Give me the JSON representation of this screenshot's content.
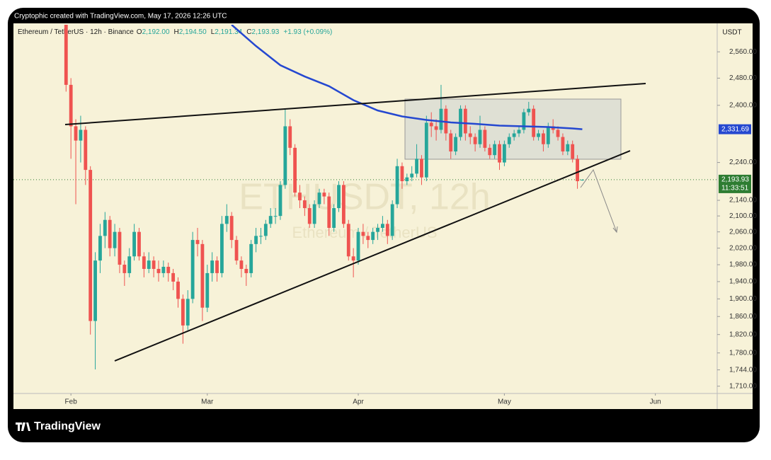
{
  "header": {
    "credit": "Cryptophic created with TradingView.com, May 17, 2026 12:26 UTC"
  },
  "legend": {
    "symbol": "Ethereum / TetherUS · 12h · Binance",
    "ohlc": [
      {
        "key": "O",
        "value": "2,192.00"
      },
      {
        "key": "H",
        "value": "2,194.50"
      },
      {
        "key": "L",
        "value": "2,191.34"
      },
      {
        "key": "C",
        "value": "2,193.93"
      }
    ],
    "change": "+1.93 (+0.09%)"
  },
  "watermark": {
    "ticker": "ETHUSDT, 12h",
    "name": "Ethereum / TetherUS"
  },
  "footer": {
    "brand": "TradingView"
  },
  "chart_data": {
    "type": "candlestick",
    "log_scale": true,
    "grid": false,
    "unit": "USDT",
    "up_color": "#26a69a",
    "down_color": "#ef5350",
    "xlim": [
      -11.8,
      132.7
    ],
    "ylim": [
      1695,
      2645
    ],
    "xticks": [
      {
        "value": 0,
        "label": "Feb"
      },
      {
        "value": 28,
        "label": "Mar"
      },
      {
        "value": 59,
        "label": "Apr"
      },
      {
        "value": 89,
        "label": "May"
      },
      {
        "value": 120,
        "label": "Jun"
      }
    ],
    "yticks": [
      {
        "value": 2560,
        "label": "2,560.00"
      },
      {
        "value": 2480,
        "label": "2,480.00"
      },
      {
        "value": 2400,
        "label": "2,400.00"
      },
      {
        "value": 2240,
        "label": "2,240.00"
      },
      {
        "value": 2140,
        "label": "2,140.00"
      },
      {
        "value": 2100,
        "label": "2,100.00"
      },
      {
        "value": 2060,
        "label": "2,060.00"
      },
      {
        "value": 2020,
        "label": "2,020.00"
      },
      {
        "value": 1980,
        "label": "1,980.00"
      },
      {
        "value": 1940,
        "label": "1,940.00"
      },
      {
        "value": 1900,
        "label": "1,900.00"
      },
      {
        "value": 1860,
        "label": "1,860.00"
      },
      {
        "value": 1820,
        "label": "1,820.00"
      },
      {
        "value": 1780,
        "label": "1,780.00"
      },
      {
        "value": 1744,
        "label": "1,744.00"
      },
      {
        "value": 1710,
        "label": "1,710.00"
      }
    ],
    "x": [
      -1,
      0,
      1,
      2,
      3,
      4,
      5,
      6,
      7,
      8,
      9,
      10,
      11,
      12,
      13,
      14,
      15,
      16,
      17,
      18,
      19,
      20,
      21,
      22,
      23,
      24,
      25,
      26,
      27,
      28,
      29,
      30,
      31,
      32,
      33,
      34,
      35,
      36,
      37,
      38,
      39,
      40,
      41,
      42,
      43,
      44,
      45,
      46,
      47,
      48,
      49,
      50,
      51,
      52,
      53,
      54,
      55,
      56,
      57,
      58,
      59,
      60,
      61,
      62,
      63,
      64,
      65,
      66,
      67,
      68,
      69,
      70,
      71,
      72,
      73,
      74,
      75,
      76,
      77,
      78,
      79,
      80,
      81,
      82,
      83,
      84,
      85,
      86,
      87,
      88,
      89,
      90,
      91,
      92,
      93,
      94,
      95,
      96,
      97,
      98,
      99,
      100,
      101,
      102,
      103,
      104,
      105
    ],
    "ohlc": [
      [
        2700,
        2720,
        2440,
        2460
      ],
      [
        2460,
        2480,
        2250,
        2340
      ],
      [
        2340,
        2360,
        2130,
        2300
      ],
      [
        2300,
        2370,
        2240,
        2330
      ],
      [
        2330,
        2340,
        2180,
        2220
      ],
      [
        2220,
        2230,
        1820,
        1850
      ],
      [
        1850,
        2010,
        1745,
        1990
      ],
      [
        1990,
        2080,
        1960,
        2050
      ],
      [
        2050,
        2110,
        2020,
        2090
      ],
      [
        2090,
        2100,
        2000,
        2020
      ],
      [
        2020,
        2080,
        2000,
        2060
      ],
      [
        2060,
        2070,
        1960,
        1980
      ],
      [
        1980,
        1990,
        1930,
        1960
      ],
      [
        1960,
        2020,
        1950,
        2000
      ],
      [
        2000,
        2080,
        1990,
        2060
      ],
      [
        2060,
        2070,
        1990,
        2000
      ],
      [
        2000,
        2010,
        1950,
        1970
      ],
      [
        1970,
        2010,
        1960,
        1990
      ],
      [
        1990,
        2000,
        1950,
        1970
      ],
      [
        1970,
        1990,
        1940,
        1960
      ],
      [
        1960,
        1990,
        1950,
        1975
      ],
      [
        1975,
        1985,
        1940,
        1960
      ],
      [
        1960,
        1970,
        1920,
        1940
      ],
      [
        1940,
        1950,
        1880,
        1900
      ],
      [
        1900,
        1910,
        1800,
        1840
      ],
      [
        1840,
        1920,
        1830,
        1900
      ],
      [
        1900,
        2060,
        1890,
        2040
      ],
      [
        2040,
        2070,
        2000,
        2030
      ],
      [
        2030,
        2040,
        1850,
        1880
      ],
      [
        1880,
        1980,
        1870,
        1960
      ],
      [
        1960,
        2010,
        1940,
        1990
      ],
      [
        1990,
        2000,
        1940,
        1960
      ],
      [
        1960,
        2100,
        1950,
        2080
      ],
      [
        2080,
        2130,
        2060,
        2100
      ],
      [
        2100,
        2110,
        2020,
        2040
      ],
      [
        2040,
        2050,
        1980,
        1990
      ],
      [
        1990,
        2000,
        1950,
        1970
      ],
      [
        1970,
        1980,
        1930,
        1960
      ],
      [
        1960,
        2040,
        1950,
        2030
      ],
      [
        2030,
        2070,
        2010,
        2050
      ],
      [
        2050,
        2070,
        2030,
        2050
      ],
      [
        2050,
        2090,
        2040,
        2080
      ],
      [
        2080,
        2120,
        2070,
        2100
      ],
      [
        2100,
        2120,
        2080,
        2100
      ],
      [
        2100,
        2190,
        2090,
        2180
      ],
      [
        2180,
        2390,
        2170,
        2340
      ],
      [
        2340,
        2360,
        2260,
        2280
      ],
      [
        2280,
        2290,
        2150,
        2160
      ],
      [
        2160,
        2180,
        2120,
        2140
      ],
      [
        2140,
        2150,
        2100,
        2120
      ],
      [
        2120,
        2130,
        2070,
        2080
      ],
      [
        2080,
        2140,
        2070,
        2130
      ],
      [
        2130,
        2170,
        2120,
        2160
      ],
      [
        2160,
        2170,
        2130,
        2150
      ],
      [
        2150,
        2160,
        2050,
        2070
      ],
      [
        2070,
        2130,
        2060,
        2120
      ],
      [
        2120,
        2190,
        2110,
        2180
      ],
      [
        2180,
        2190,
        2070,
        2080
      ],
      [
        2080,
        2090,
        1990,
        2000
      ],
      [
        2000,
        2020,
        1950,
        1990
      ],
      [
        1990,
        2070,
        1980,
        2060
      ],
      [
        2060,
        2080,
        2030,
        2050
      ],
      [
        2050,
        2060,
        2020,
        2040
      ],
      [
        2040,
        2070,
        2030,
        2060
      ],
      [
        2060,
        2080,
        2040,
        2070
      ],
      [
        2070,
        2100,
        2060,
        2080
      ],
      [
        2080,
        2090,
        2030,
        2050
      ],
      [
        2050,
        2140,
        2040,
        2130
      ],
      [
        2130,
        2250,
        2120,
        2230
      ],
      [
        2230,
        2240,
        2170,
        2190
      ],
      [
        2190,
        2210,
        2180,
        2200
      ],
      [
        2200,
        2230,
        2190,
        2210
      ],
      [
        2210,
        2290,
        2200,
        2250
      ],
      [
        2250,
        2260,
        2180,
        2200
      ],
      [
        2200,
        2370,
        2190,
        2350
      ],
      [
        2350,
        2380,
        2310,
        2340
      ],
      [
        2340,
        2360,
        2300,
        2330
      ],
      [
        2330,
        2460,
        2320,
        2390
      ],
      [
        2390,
        2400,
        2300,
        2320
      ],
      [
        2320,
        2330,
        2250,
        2270
      ],
      [
        2270,
        2320,
        2260,
        2310
      ],
      [
        2310,
        2400,
        2300,
        2390
      ],
      [
        2390,
        2400,
        2300,
        2320
      ],
      [
        2320,
        2340,
        2290,
        2310
      ],
      [
        2310,
        2320,
        2270,
        2290
      ],
      [
        2290,
        2370,
        2280,
        2330
      ],
      [
        2330,
        2340,
        2270,
        2280
      ],
      [
        2280,
        2290,
        2250,
        2260
      ],
      [
        2260,
        2300,
        2250,
        2290
      ],
      [
        2290,
        2300,
        2220,
        2240
      ],
      [
        2240,
        2300,
        2230,
        2290
      ],
      [
        2290,
        2320,
        2280,
        2310
      ],
      [
        2310,
        2330,
        2300,
        2320
      ],
      [
        2320,
        2340,
        2310,
        2330
      ],
      [
        2330,
        2390,
        2320,
        2380
      ],
      [
        2380,
        2410,
        2370,
        2390
      ],
      [
        2390,
        2400,
        2300,
        2310
      ],
      [
        2310,
        2330,
        2300,
        2320
      ],
      [
        2320,
        2330,
        2270,
        2290
      ],
      [
        2290,
        2350,
        2280,
        2340
      ],
      [
        2340,
        2360,
        2320,
        2330
      ],
      [
        2330,
        2340,
        2300,
        2310
      ],
      [
        2310,
        2320,
        2260,
        2270
      ],
      [
        2270,
        2300,
        2260,
        2290
      ],
      [
        2290,
        2300,
        2240,
        2250
      ],
      [
        2250,
        2260,
        2170,
        2190
      ],
      [
        2192,
        2194.5,
        2191.34,
        2193.93
      ]
    ],
    "ma": {
      "color": "#2548d0",
      "x": [
        33,
        38,
        43,
        48,
        53,
        58,
        63,
        68,
        73,
        78,
        83,
        88,
        93,
        98,
        103,
        105
      ],
      "values": [
        2645,
        2578,
        2519,
        2485,
        2456,
        2415,
        2385,
        2368,
        2358,
        2351,
        2347,
        2342,
        2340,
        2338,
        2334,
        2331.69
      ],
      "last": {
        "value": 2331.69,
        "label": "2,331.69"
      }
    },
    "price": {
      "value": 2193.93,
      "label": "2,193.93",
      "countdown": "11:33:51",
      "color": "#2e7d32"
    }
  }
}
